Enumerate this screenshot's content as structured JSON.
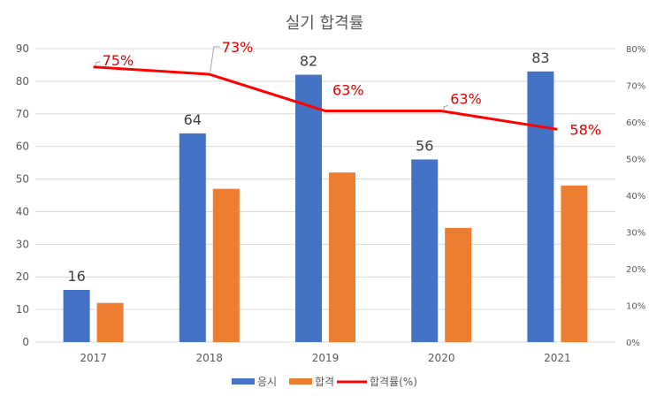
{
  "chart_data": {
    "type": "bar",
    "title": "실기 합격률",
    "categories": [
      "2017",
      "2018",
      "2019",
      "2020",
      "2021"
    ],
    "series": [
      {
        "name": "응시",
        "kind": "bar",
        "color": "#4472c4",
        "values": [
          16,
          64,
          82,
          56,
          83
        ]
      },
      {
        "name": "합격",
        "kind": "bar",
        "color": "#ed7d31",
        "values": [
          12,
          47,
          52,
          35,
          48
        ]
      },
      {
        "name": "합격률(%)",
        "kind": "line",
        "axis": "right",
        "color": "#ff0000",
        "values": [
          75,
          73,
          63,
          63,
          58
        ]
      }
    ],
    "data_labels": {
      "applicants": [
        "16",
        "64",
        "82",
        "56",
        "83"
      ],
      "rate": [
        "75%",
        "73%",
        "63%",
        "63%",
        "58%"
      ]
    },
    "y_left": {
      "ylim": [
        0,
        90
      ],
      "ticks": [
        "0",
        "10",
        "20",
        "30",
        "40",
        "50",
        "60",
        "70",
        "80",
        "90"
      ]
    },
    "y_right": {
      "ylim": [
        0,
        80
      ],
      "ticks": [
        "0%",
        "10%",
        "20%",
        "30%",
        "40%",
        "50%",
        "60%",
        "70%",
        "80%"
      ]
    },
    "grid": true,
    "legend": "bottom"
  }
}
